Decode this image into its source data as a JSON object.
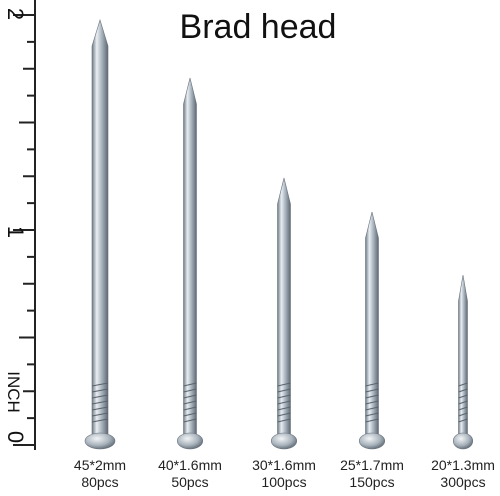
{
  "title": "Brad head",
  "ruler": {
    "unit": "INCH",
    "labels": [
      "2",
      "1",
      "0"
    ]
  },
  "nails": [
    {
      "size": "45*2mm",
      "count": "80pcs"
    },
    {
      "size": "40*1.6mm",
      "count": "50pcs"
    },
    {
      "size": "30*1.6mm",
      "count": "100pcs"
    },
    {
      "size": "25*1.7mm",
      "count": "150pcs"
    },
    {
      "size": "20*1.3mm",
      "count": "300pcs"
    }
  ]
}
